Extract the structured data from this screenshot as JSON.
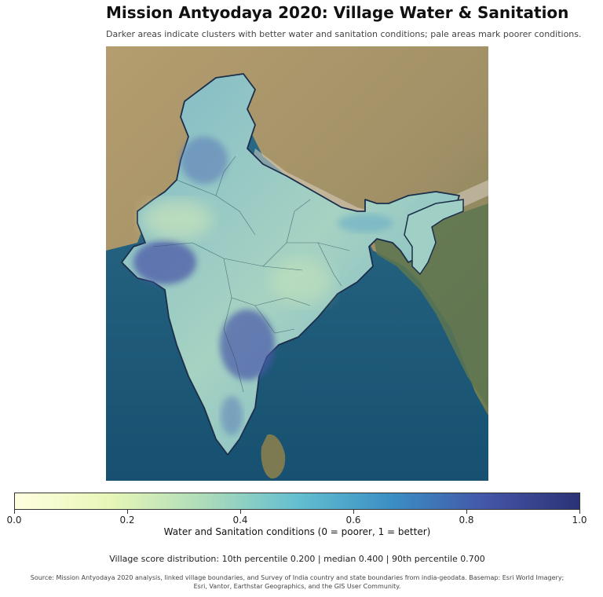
{
  "title": "Mission Antyodaya 2020: Village Water & Sanitation",
  "subtitle": "Darker areas indicate clusters with better water and sanitation conditions; pale areas mark poorer conditions.",
  "colorbar": {
    "label": "Water and Sanitation conditions (0 = poorer, 1 = better)",
    "ticks": [
      "0.0",
      "0.2",
      "0.4",
      "0.6",
      "0.8",
      "1.0"
    ],
    "tick_values": [
      0.0,
      0.2,
      0.4,
      0.6,
      0.8,
      1.0
    ],
    "colors": [
      "#ffffe0",
      "#e8f6b8",
      "#aedcb9",
      "#63bfd0",
      "#3b8fc4",
      "#4456a8",
      "#2a3275"
    ]
  },
  "distribution_text": "Village score distribution: 10th percentile 0.200   |   median 0.400   |   90th percentile 0.700",
  "source_text": "Source: Mission Antyodaya 2020 analysis, linked village boundaries, and Survey of India country and state boundaries from india-geodata. Basemap: Esri World Imagery; Esri, Vantor, Earthstar Geographics, and the GIS User Community.",
  "map_colors": {
    "ocean": "#1f5a78",
    "land": "#9d8a60",
    "mountains": "#a89a7a",
    "boundary": "#1c2e4a"
  }
}
